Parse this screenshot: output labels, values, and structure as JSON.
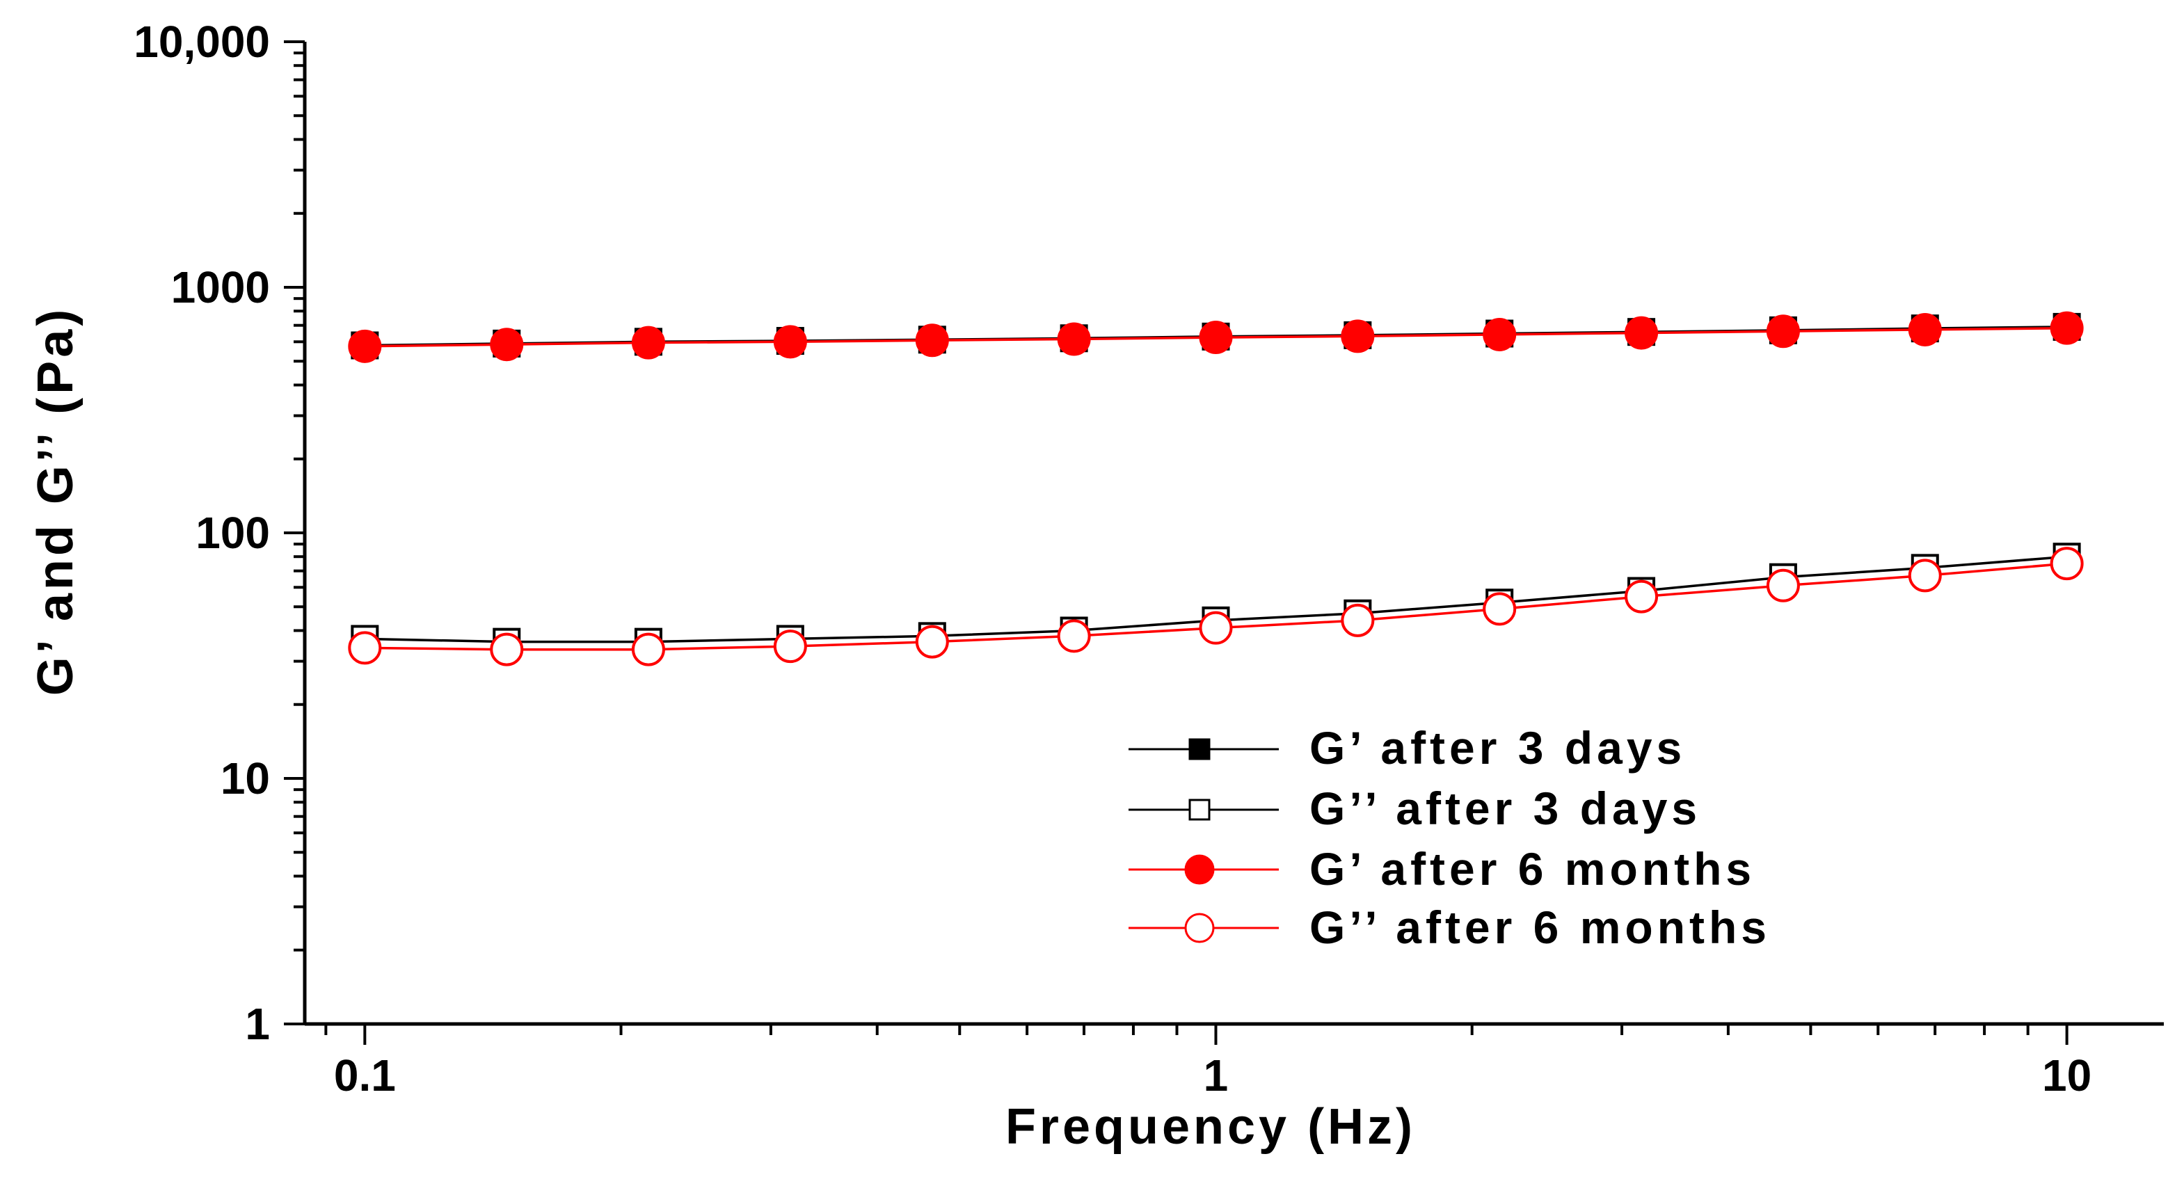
{
  "chart_data": {
    "type": "line",
    "title": "",
    "xlabel": "Frequency (Hz)",
    "ylabel": "G’ and G’’ (Pa)",
    "xscale": "log",
    "yscale": "log",
    "xlim": [
      0.085,
      13
    ],
    "ylim": [
      1,
      10000
    ],
    "x_tick_labels": [
      "0.1",
      "1",
      "10"
    ],
    "y_tick_labels": [
      "1",
      "10",
      "100",
      "1000",
      "10,000"
    ],
    "x": [
      0.1,
      0.1468,
      0.2154,
      0.3162,
      0.4642,
      0.6813,
      1.0,
      1.4678,
      2.1544,
      3.1623,
      4.6416,
      6.8129,
      10.0
    ],
    "series": [
      {
        "name": "G’ after 3 days",
        "color": "#000000",
        "marker": "square",
        "filled": true,
        "values": [
          580,
          590,
          600,
          605,
          612,
          620,
          630,
          638,
          648,
          658,
          668,
          680,
          690
        ]
      },
      {
        "name": "G’’ after 3 days",
        "color": "#000000",
        "marker": "square",
        "filled": false,
        "values": [
          37,
          36,
          36,
          37,
          38,
          40,
          44,
          47,
          52,
          58,
          66,
          72,
          80
        ]
      },
      {
        "name": "G’ after 6 months",
        "color": "#ff0000",
        "marker": "circle",
        "filled": true,
        "values": [
          575,
          585,
          595,
          600,
          608,
          615,
          625,
          632,
          642,
          652,
          662,
          672,
          682
        ]
      },
      {
        "name": "G’’ after 6 months",
        "color": "#ff0000",
        "marker": "circle",
        "filled": false,
        "values": [
          34,
          33.5,
          33.5,
          34.5,
          36,
          38,
          41,
          44,
          49,
          55,
          61,
          67,
          75
        ]
      }
    ],
    "legend_position": "lower-right"
  }
}
